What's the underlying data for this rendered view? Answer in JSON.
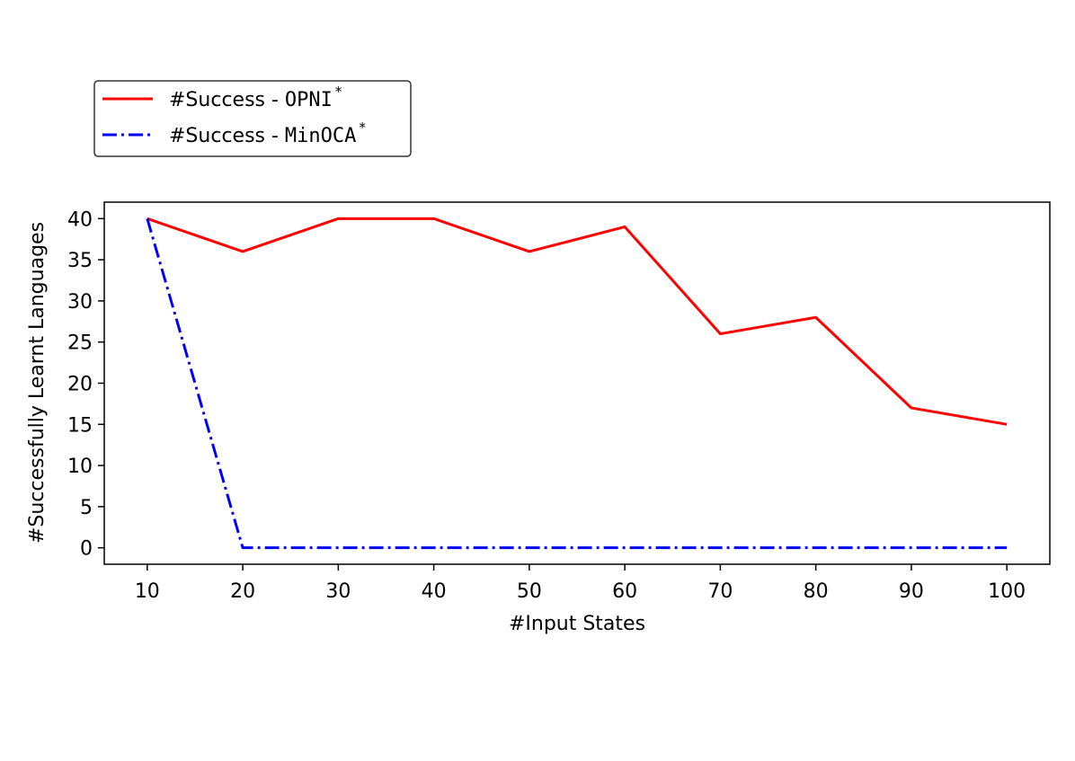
{
  "chart_data": {
    "type": "line",
    "xlabel": "#Input States",
    "ylabel": "#Successfully Learnt Languages",
    "x": [
      10,
      20,
      30,
      40,
      50,
      60,
      70,
      80,
      90,
      100
    ],
    "xlim": [
      5.5,
      104.5
    ],
    "ylim": [
      -2,
      42
    ],
    "xticks": [
      10,
      20,
      30,
      40,
      50,
      60,
      70,
      80,
      90,
      100
    ],
    "yticks": [
      0,
      5,
      10,
      15,
      20,
      25,
      30,
      35,
      40
    ],
    "grid": false,
    "legend_position": "top-left, above plot",
    "series": [
      {
        "label_prefix": "#Success - ",
        "label_method": "OPNI",
        "label_sup": "*",
        "color": "#ff0000",
        "linestyle": "solid",
        "values": [
          40,
          36,
          40,
          40,
          36,
          39,
          26,
          28,
          17,
          15
        ]
      },
      {
        "label_prefix": "#Success - ",
        "label_method": "MinOCA",
        "label_sup": "*",
        "color": "#0000ff",
        "linestyle": "dashdot",
        "values": [
          40,
          0,
          0,
          0,
          0,
          0,
          0,
          0,
          0,
          0
        ]
      }
    ]
  }
}
